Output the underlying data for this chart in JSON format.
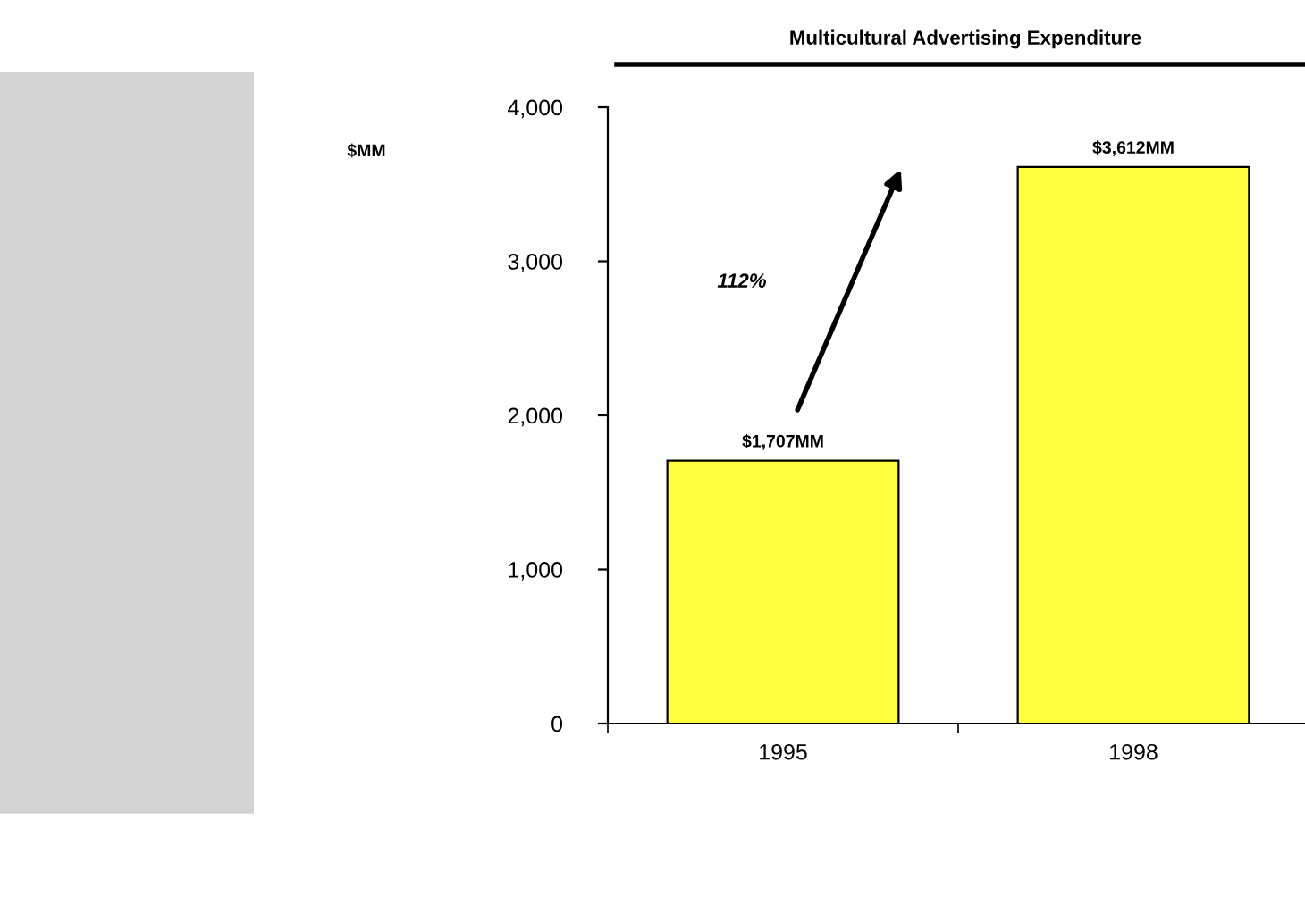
{
  "chart_data": {
    "type": "bar",
    "title": "Multicultural Advertising Expenditure",
    "categories": [
      "1995",
      "1998"
    ],
    "values": [
      1707,
      3612
    ],
    "value_labels": [
      "$1,707MM",
      "$3,612MM"
    ],
    "color": "#ffff40",
    "ylim": [
      0,
      4000
    ],
    "yticks": [
      {
        "value": 0,
        "label": "0"
      },
      {
        "value": 1000,
        "label": "1,000"
      },
      {
        "value": 2000,
        "label": "2,000"
      },
      {
        "value": 3000,
        "label": "3,000"
      },
      {
        "value": 4000,
        "label": "4,000"
      }
    ],
    "annotations": [
      "$MM",
      "112%"
    ],
    "grid": false,
    "legend": false
  }
}
